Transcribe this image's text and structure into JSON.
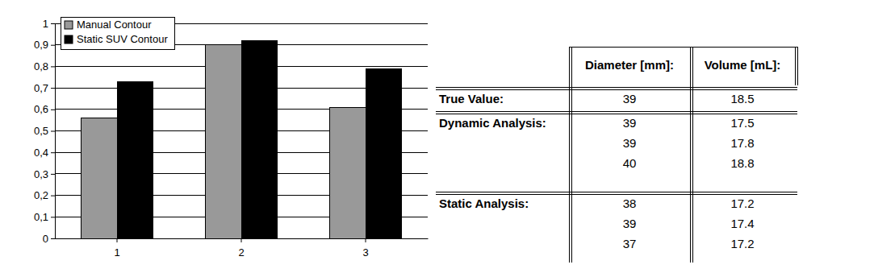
{
  "chart_data": {
    "type": "bar",
    "categories": [
      "1",
      "2",
      "3"
    ],
    "series": [
      {
        "name": "Manual Contour",
        "color": "#999999",
        "values": [
          0.56,
          0.9,
          0.61
        ]
      },
      {
        "name": "Static SUV Contour",
        "color": "#000000",
        "values": [
          0.73,
          0.92,
          0.79
        ]
      }
    ],
    "ylim": [
      0,
      1
    ],
    "yticks": [
      0,
      {
        "value": 0.1,
        "label": "0,1"
      },
      {
        "value": 0.2,
        "label": "0,2"
      },
      {
        "value": 0.3,
        "label": "0,3"
      },
      {
        "value": 0.4,
        "label": "0,4"
      },
      {
        "value": 0.5,
        "label": "0,5"
      },
      {
        "value": 0.6,
        "label": "0,6"
      },
      {
        "value": 0.7,
        "label": "0,7"
      },
      {
        "value": 0.8,
        "label": "0,8"
      },
      {
        "value": 0.9,
        "label": "0,9"
      },
      1
    ],
    "grid": true,
    "legend": "top-left"
  },
  "table": {
    "columns": [
      "Diameter [mm]:",
      "Volume [mL]:"
    ],
    "groups": [
      {
        "label": "True Value:",
        "rows": [
          [
            39,
            18.5
          ]
        ]
      },
      {
        "label": "Dynamic Analysis:",
        "rows": [
          [
            39,
            17.5
          ],
          [
            39,
            17.8
          ],
          [
            40,
            18.8
          ]
        ]
      },
      {
        "label": "Static Analysis:",
        "rows": [
          [
            38,
            17.2
          ],
          [
            39,
            17.4
          ],
          [
            37,
            17.2
          ]
        ]
      }
    ]
  }
}
